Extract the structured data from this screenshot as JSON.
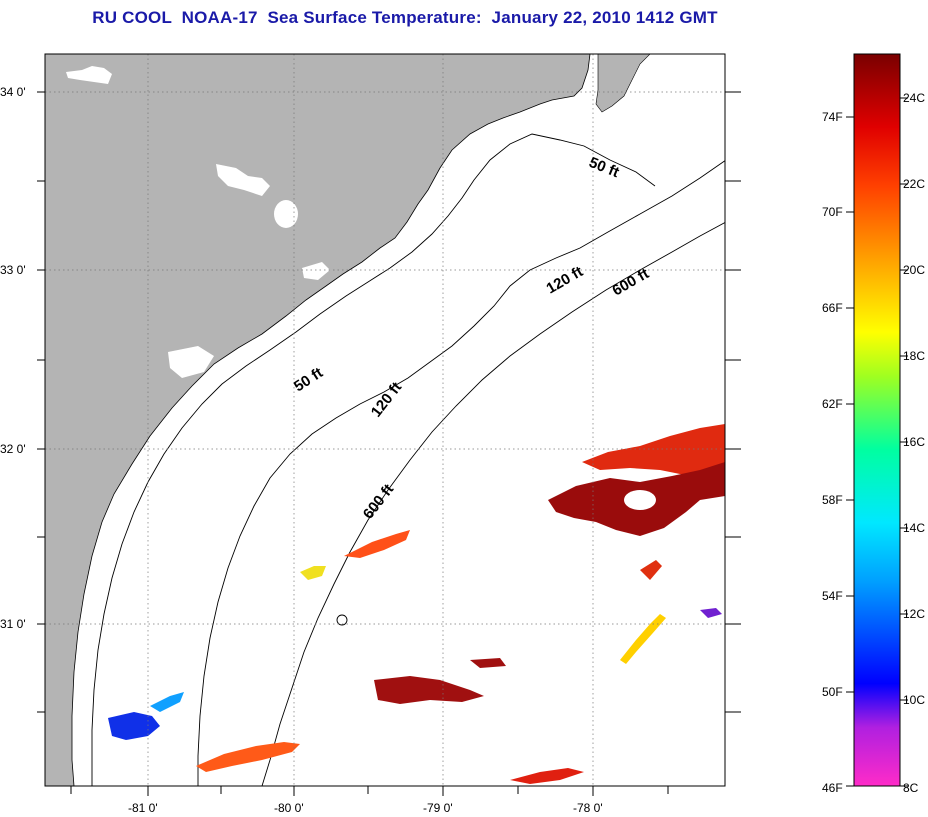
{
  "title": "RU COOL  NOAA-17  Sea Surface Temperature:  January 22, 2010 1412 GMT",
  "map": {
    "lon_labels": [
      "-81 0'",
      "-80 0'",
      "-79 0'",
      "-78 0'"
    ],
    "lat_labels": [
      "34 0'",
      "33 0'",
      "32 0'",
      "31 0'"
    ],
    "isobaths": {
      "fifty_ft": "50 ft",
      "one_twenty_ft": "120 ft",
      "six_hundred_ft": "600 ft"
    },
    "colors": {
      "land": "#b4b4b4",
      "ocean": "#ffffff",
      "title": "#1a1aa8"
    }
  },
  "colorbar": {
    "fahrenheit_labels": [
      "74F",
      "70F",
      "66F",
      "62F",
      "58F",
      "54F",
      "50F",
      "46F"
    ],
    "celsius_labels": [
      "24C",
      "22C",
      "20C",
      "18C",
      "16C",
      "14C",
      "12C",
      "10C",
      "8C"
    ],
    "range_celsius": [
      8,
      25
    ]
  }
}
